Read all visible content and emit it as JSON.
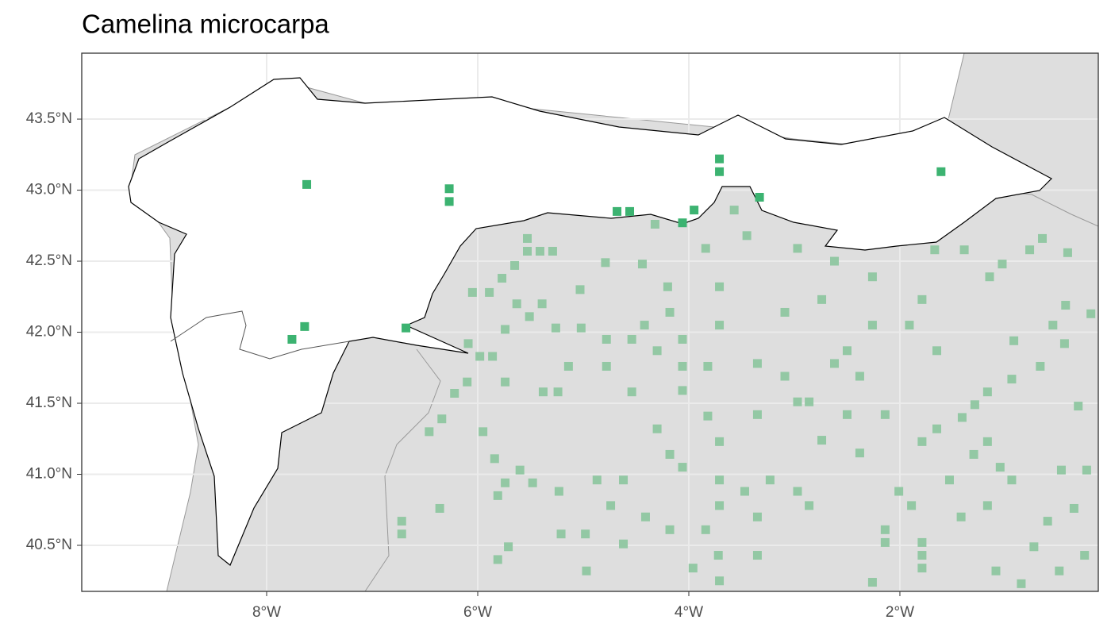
{
  "chart_data": {
    "type": "scatter",
    "title": "Camelina microcarpa",
    "xlim": [
      -9.752,
      -0.12
    ],
    "ylim": [
      40.176,
      43.964
    ],
    "xticks": [
      {
        "value": -8,
        "label": "8°W"
      },
      {
        "value": -6,
        "label": "6°W"
      },
      {
        "value": -4,
        "label": "4°W"
      },
      {
        "value": -2,
        "label": "2°W"
      }
    ],
    "yticks": [
      {
        "value": 40.5,
        "label": "40.5°N"
      },
      {
        "value": 41,
        "label": "41.0°N"
      },
      {
        "value": 41.5,
        "label": "41.5°N"
      },
      {
        "value": 42,
        "label": "42.0°N"
      },
      {
        "value": 42.5,
        "label": "42.5°N"
      },
      {
        "value": 43,
        "label": "43.0°N"
      },
      {
        "value": 43.5,
        "label": "43.5°N"
      }
    ],
    "grid": true,
    "series": [
      {
        "color": "#93c8a4",
        "x": [
          -5.53,
          -5.53,
          -5.41,
          -5.29,
          -5.65,
          -5.77,
          -6.05,
          -5.89,
          -5.63,
          -5.39,
          -5.51,
          -5.74,
          -5.26,
          -5.02,
          -5.03,
          -4.79,
          -6.09,
          -5.98,
          -5.86,
          -6.1,
          -5.74,
          -5.38,
          -5.24,
          -6.22,
          -6.34,
          -6.46,
          -5.95,
          -5.84,
          -5.6,
          -5.74,
          -5.48,
          -5.23,
          -4.87,
          -5.81,
          -6.36,
          -6.72,
          -6.72,
          -4.62,
          -4.74,
          -5.21,
          -4.98,
          -4.62,
          -5.71,
          -5.81,
          -4.97,
          -5.14,
          -4.78,
          -4.78,
          -4.54,
          -4.54,
          -4.42,
          -4.3,
          -4.18,
          -4.06,
          -4.06,
          -3.82,
          -3.71,
          -4.06,
          -3.82,
          -3.71,
          -4.3,
          -4.18,
          -4.06,
          -3.71,
          -3.71,
          -3.47,
          -3.23,
          -3.35,
          -3.84,
          -3.72,
          -3.35,
          -3.96,
          -3.71,
          -4.18,
          -4.41,
          -4.44,
          -4.32,
          -4.2,
          -3.84,
          -3.71,
          -3.57,
          -3.45,
          -3.09,
          -3.35,
          -3.09,
          -2.97,
          -3.35,
          -2.86,
          -2.74,
          -2.62,
          -2.5,
          -2.74,
          -2.97,
          -2.62,
          -2.26,
          -2.26,
          -2.38,
          -2.14,
          -2.38,
          -2.5,
          -1.91,
          -1.79,
          -1.65,
          -1.67,
          -1.39,
          -1.15,
          -1.03,
          -0.77,
          -0.65,
          -0.41,
          -0.43,
          -0.55,
          -0.19,
          -0.67,
          -0.94,
          -1.17,
          -1.29,
          -1.41,
          -1.65,
          -1.79,
          -1.17,
          -1.3,
          -1.05,
          -1.53,
          -2.01,
          -1.89,
          -2.14,
          -2.14,
          -1.79,
          -1.79,
          -1.79,
          -1.42,
          -1.17,
          -0.94,
          -0.47,
          -0.23,
          -0.6,
          -0.35,
          -0.73,
          -0.49,
          -0.25,
          -1.09,
          -0.85,
          -2.26,
          -2.86,
          -2.97,
          -0.31,
          -0.44,
          -0.92
        ],
        "values": [
          42.66,
          42.57,
          42.57,
          42.57,
          42.47,
          42.38,
          42.28,
          42.28,
          42.2,
          42.2,
          42.11,
          42.02,
          42.03,
          42.03,
          42.3,
          42.49,
          41.92,
          41.83,
          41.83,
          41.65,
          41.65,
          41.58,
          41.58,
          41.57,
          41.39,
          41.3,
          41.3,
          41.11,
          41.03,
          40.94,
          40.94,
          40.88,
          40.96,
          40.85,
          40.76,
          40.67,
          40.58,
          40.96,
          40.78,
          40.58,
          40.58,
          40.51,
          40.49,
          40.4,
          40.32,
          41.76,
          41.95,
          41.76,
          41.95,
          41.58,
          42.05,
          41.87,
          42.14,
          41.95,
          41.76,
          41.76,
          42.05,
          41.59,
          41.41,
          41.23,
          41.32,
          41.14,
          41.05,
          40.96,
          40.78,
          40.88,
          40.96,
          40.7,
          40.61,
          40.43,
          40.43,
          40.34,
          40.25,
          40.61,
          40.7,
          42.48,
          42.76,
          42.32,
          42.59,
          42.32,
          42.86,
          42.68,
          42.14,
          41.78,
          41.69,
          41.51,
          41.42,
          41.51,
          41.24,
          41.78,
          41.87,
          42.23,
          42.59,
          42.5,
          42.39,
          42.05,
          41.69,
          41.42,
          41.15,
          41.42,
          42.05,
          42.23,
          41.87,
          42.58,
          42.58,
          42.39,
          42.48,
          42.58,
          42.66,
          42.56,
          42.19,
          42.05,
          42.13,
          41.76,
          41.67,
          41.58,
          41.49,
          41.4,
          41.32,
          41.23,
          41.23,
          41.14,
          41.05,
          40.96,
          40.88,
          40.78,
          40.61,
          40.52,
          40.52,
          40.43,
          40.34,
          40.7,
          40.78,
          40.96,
          41.03,
          41.03,
          40.67,
          40.76,
          40.49,
          40.32,
          40.43,
          40.32,
          40.23,
          40.24,
          40.78,
          40.88,
          41.48,
          41.92,
          41.94
        ]
      },
      {
        "color": "#3cb371",
        "x": [
          -7.62,
          -6.27,
          -6.27,
          -4.68,
          -4.56,
          -4.06,
          -3.95,
          -3.71,
          -3.71,
          -3.33,
          -1.61,
          -7.64,
          -7.76,
          -6.68
        ],
        "values": [
          43.04,
          43.01,
          42.92,
          42.85,
          42.85,
          42.77,
          42.86,
          43.22,
          43.13,
          42.95,
          43.13,
          42.04,
          41.95,
          42.03
        ]
      }
    ]
  }
}
